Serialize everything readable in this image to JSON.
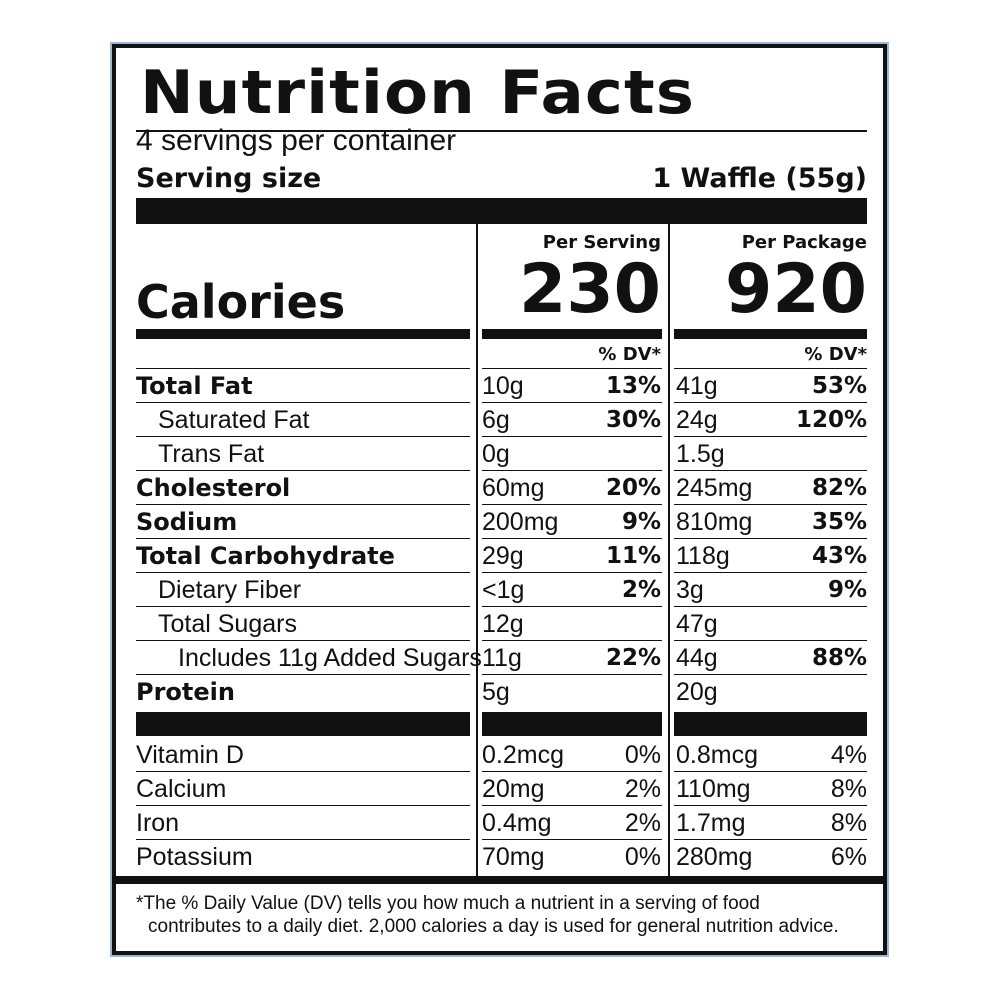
{
  "title": "Nutrition Facts",
  "servings_per_container": "4 servings per container",
  "serving_size_label": "Serving size",
  "serving_size_value": "1 Waffle (55g)",
  "col1_header": "Per Serving",
  "col2_header": "Per Package",
  "calories_label": "Calories",
  "calories_serving": "230",
  "calories_package": "920",
  "dv_header": "% DV*",
  "nutrients": [
    {
      "name": "Total Fat",
      "amt1": "10g",
      "pct1": "13%",
      "amt2": "41g",
      "pct2": "53%"
    },
    {
      "name": "Saturated Fat",
      "amt1": "6g",
      "pct1": "30%",
      "amt2": "24g",
      "pct2": "120%"
    },
    {
      "name": "Trans Fat",
      "amt1": "0g",
      "pct1": "",
      "amt2": "1.5g",
      "pct2": ""
    },
    {
      "name": "Cholesterol",
      "amt1": "60mg",
      "pct1": "20%",
      "amt2": "245mg",
      "pct2": "82%"
    },
    {
      "name": "Sodium",
      "amt1": "200mg",
      "pct1": "9%",
      "amt2": "810mg",
      "pct2": "35%"
    },
    {
      "name": "Total Carbohydrate",
      "amt1": "29g",
      "pct1": "11%",
      "amt2": "118g",
      "pct2": "43%"
    },
    {
      "name": "Dietary Fiber",
      "amt1": "<1g",
      "pct1": "2%",
      "amt2": "3g",
      "pct2": "9%"
    },
    {
      "name": "Total Sugars",
      "amt1": "12g",
      "pct1": "",
      "amt2": "47g",
      "pct2": ""
    },
    {
      "name": "Includes 11g Added Sugars",
      "amt1": "11g",
      "pct1": "22%",
      "amt2": "44g",
      "pct2": "88%"
    },
    {
      "name": "Protein",
      "amt1": "5g",
      "pct1": "",
      "amt2": "20g",
      "pct2": ""
    }
  ],
  "vitamins": [
    {
      "name": "Vitamin D",
      "amt1": "0.2mcg",
      "pct1": "0%",
      "amt2": "0.8mcg",
      "pct2": "4%"
    },
    {
      "name": "Calcium",
      "amt1": "20mg",
      "pct1": "2%",
      "amt2": "110mg",
      "pct2": "8%"
    },
    {
      "name": "Iron",
      "amt1": "0.4mg",
      "pct1": "2%",
      "amt2": "1.7mg",
      "pct2": "8%"
    },
    {
      "name": "Potassium",
      "amt1": "70mg",
      "pct1": "0%",
      "amt2": "280mg",
      "pct2": "6%"
    }
  ],
  "footnote_line1": "*The % Daily Value (DV) tells you how much a nutrient in a serving of food",
  "footnote_line2": "contributes to a daily diet. 2,000 calories a day is used for general nutrition advice."
}
